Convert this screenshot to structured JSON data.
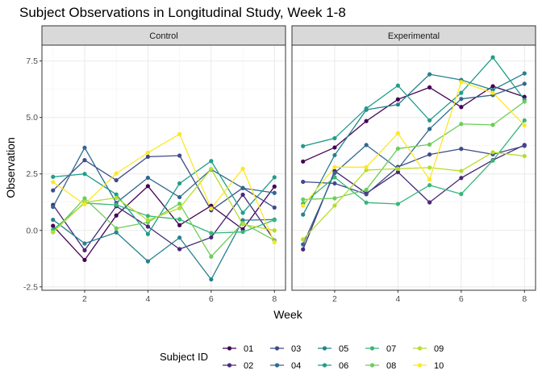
{
  "chart_data": {
    "type": "line",
    "title": "Subject Observations in Longitudinal Study, Week 1-8",
    "xlabel": "Week",
    "ylabel": "Observation",
    "x": [
      1,
      2,
      3,
      4,
      5,
      6,
      7,
      8
    ],
    "xlim": [
      0.65,
      8.35
    ],
    "ylim": [
      -2.65,
      8.2
    ],
    "x_ticks": [
      2,
      4,
      6,
      8
    ],
    "y_ticks": [
      -2.5,
      0.0,
      2.5,
      5.0,
      7.5
    ],
    "y_tick_labels": [
      "-2.5",
      "0.0",
      "2.5",
      "5.0",
      "7.5"
    ],
    "grid": true,
    "legend": {
      "title": "Subject ID",
      "position": "bottom"
    },
    "colors": {
      "01": "#440154",
      "02": "#482878",
      "03": "#3E4A89",
      "04": "#31688E",
      "05": "#26828E",
      "06": "#1F9E89",
      "07": "#35B779",
      "08": "#6DCD59",
      "09": "#B4DE2C",
      "10": "#FDE725"
    },
    "panels": [
      {
        "name": "Control",
        "series": [
          {
            "name": "01",
            "values": [
              0.2,
              -1.31,
              0.66,
              1.96,
              0.23,
              1.09,
              0.05,
              1.94
            ]
          },
          {
            "name": "02",
            "values": [
              1.13,
              -0.88,
              1.07,
              0.17,
              -0.83,
              -0.31,
              1.58,
              -0.44
            ]
          },
          {
            "name": "03",
            "values": [
              1.77,
              3.11,
              2.22,
              3.26,
              3.31,
              0.89,
              1.88,
              1.01
            ]
          },
          {
            "name": "04",
            "values": [
              1.04,
              3.66,
              1.22,
              2.33,
              1.47,
              2.7,
              1.87,
              1.66
            ]
          },
          {
            "name": "05",
            "values": [
              0.47,
              -0.58,
              -0.09,
              -1.37,
              -0.32,
              -2.17,
              0.45,
              0.48
            ]
          },
          {
            "name": "06",
            "values": [
              2.37,
              2.5,
              1.59,
              -0.16,
              2.08,
              3.07,
              0.78,
              2.35
            ]
          },
          {
            "name": "07",
            "values": [
              0.03,
              1.21,
              1.13,
              0.64,
              0.49,
              -0.12,
              -0.07,
              0.46
            ]
          },
          {
            "name": "08",
            "values": [
              -0.08,
              1.42,
              0.09,
              0.36,
              1.18,
              -1.16,
              0.33,
              -0.44
            ]
          },
          {
            "name": "09",
            "values": [
              -0.08,
              1.24,
              1.44,
              0.45,
              0.98,
              2.72,
              0.27,
              0.0
            ]
          },
          {
            "name": "10",
            "values": [
              2.14,
              1.15,
              2.52,
              3.44,
              4.26,
              0.97,
              2.73,
              -0.53
            ]
          }
        ]
      },
      {
        "name": "Experimental",
        "series": [
          {
            "name": "01",
            "values": [
              3.05,
              3.67,
              4.84,
              5.8,
              6.33,
              5.46,
              6.38,
              5.91
            ]
          },
          {
            "name": "02",
            "values": [
              -0.84,
              2.63,
              1.64,
              2.58,
              1.24,
              2.32,
              3.11,
              3.78
            ]
          },
          {
            "name": "03",
            "values": [
              2.15,
              2.08,
              1.6,
              2.81,
              3.36,
              3.61,
              3.37,
              3.74
            ]
          },
          {
            "name": "04",
            "values": [
              -0.62,
              2.54,
              3.78,
              2.73,
              4.49,
              5.82,
              5.99,
              6.49
            ]
          },
          {
            "name": "05",
            "values": [
              0.7,
              3.33,
              5.34,
              5.57,
              6.91,
              6.66,
              6.22,
              6.95
            ]
          },
          {
            "name": "06",
            "values": [
              3.73,
              4.08,
              5.4,
              6.41,
              4.87,
              6.09,
              7.66,
              5.78
            ]
          },
          {
            "name": "07",
            "values": [
              1.18,
              2.35,
              1.23,
              1.17,
              2.0,
              1.61,
              3.09,
              4.87
            ]
          },
          {
            "name": "08",
            "values": [
              1.37,
              1.42,
              1.8,
              3.62,
              3.8,
              4.71,
              4.67,
              5.7
            ]
          },
          {
            "name": "09",
            "values": [
              -0.4,
              1.1,
              2.67,
              2.73,
              2.78,
              2.63,
              3.46,
              3.29
            ]
          },
          {
            "name": "10",
            "values": [
              1.09,
              2.8,
              2.8,
              4.3,
              2.25,
              6.57,
              6.09,
              4.65
            ]
          }
        ]
      }
    ]
  }
}
